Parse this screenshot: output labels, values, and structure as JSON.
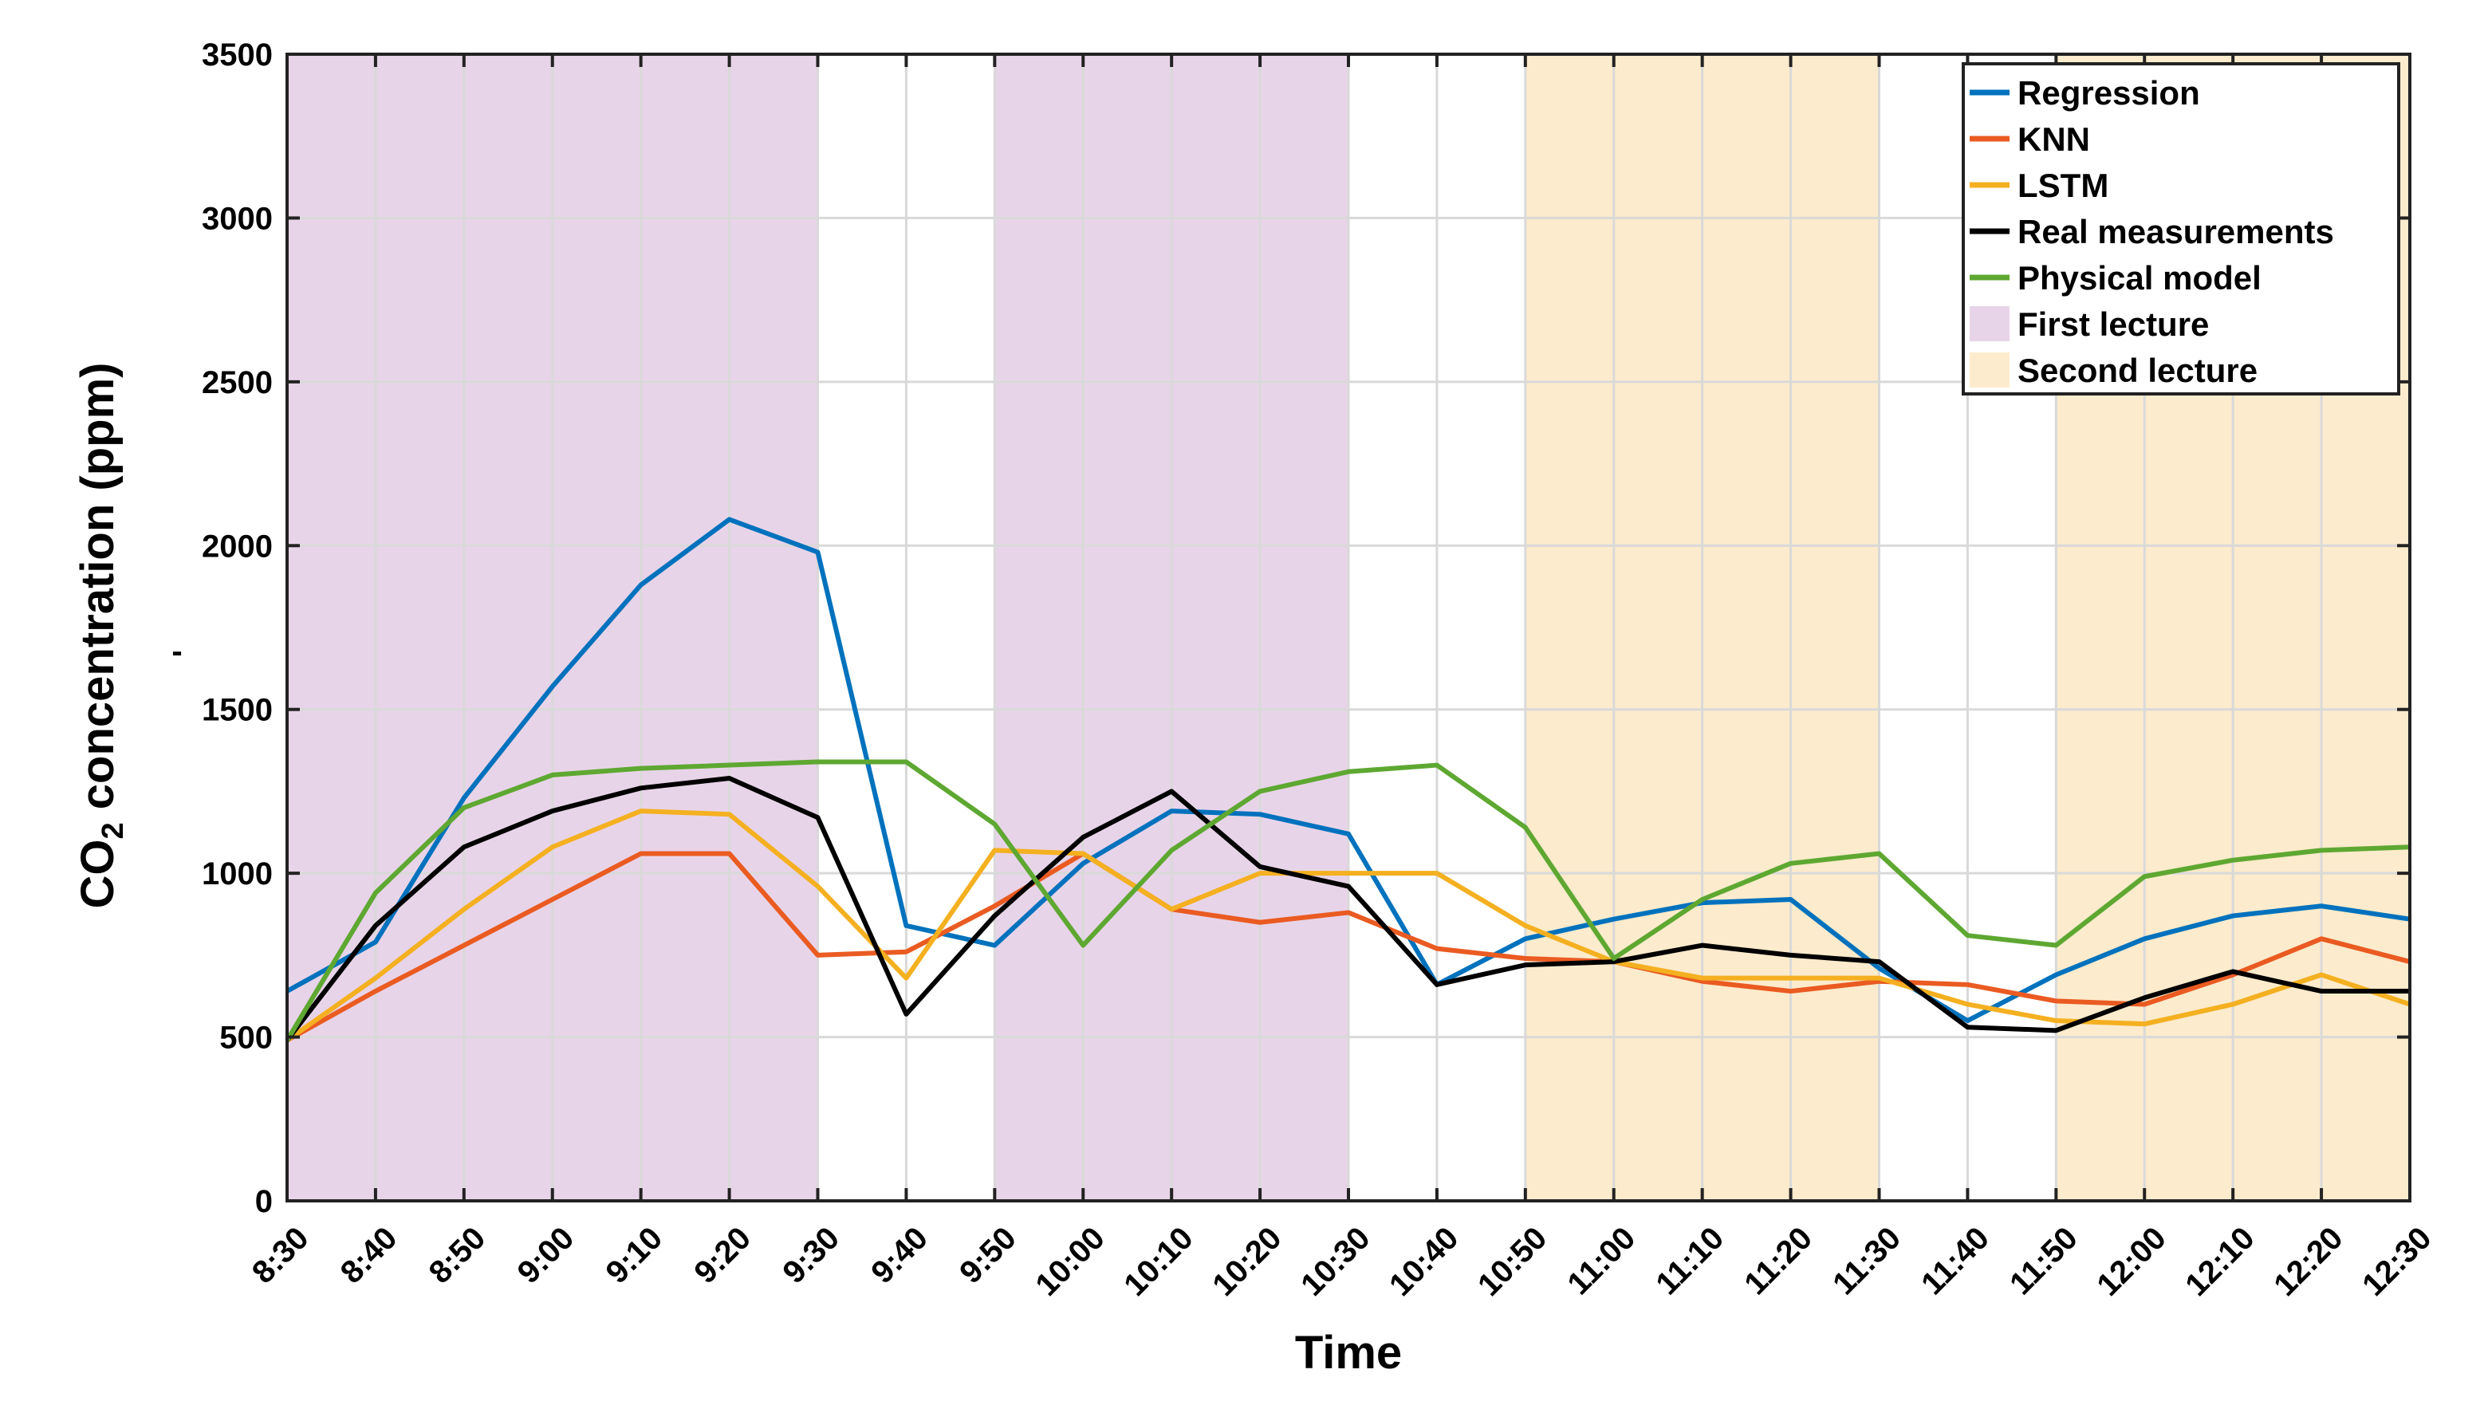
{
  "chart_data": {
    "type": "line",
    "title": "",
    "xlabel": "Time",
    "ylabel_main": "CO",
    "ylabel_sub": "2",
    "ylabel_rest": " concentration (ppm)",
    "ylabel_mark": "-",
    "categories": [
      "8:30",
      "8:40",
      "8:50",
      "9:00",
      "9:10",
      "9:20",
      "9:30",
      "9:40",
      "9:50",
      "10:00",
      "10:10",
      "10:20",
      "10:30",
      "10:40",
      "10:50",
      "11:00",
      "11:10",
      "11:20",
      "11:30",
      "11:40",
      "11:50",
      "12:00",
      "12:10",
      "12:20",
      "12:30"
    ],
    "ylim": [
      0,
      3500
    ],
    "yticks": [
      0,
      500,
      1000,
      1500,
      2000,
      2500,
      3000,
      3500
    ],
    "grid": true,
    "legend_position": "top-right",
    "series": [
      {
        "name": "Regression",
        "color": "#0072BD",
        "values": [
          640,
          790,
          1230,
          1570,
          1880,
          2080,
          1980,
          840,
          780,
          1030,
          1190,
          1180,
          1120,
          660,
          800,
          860,
          910,
          920,
          710,
          550,
          690,
          800,
          870,
          900,
          860
        ]
      },
      {
        "name": "KNN",
        "color": "#EA5B22",
        "values": [
          490,
          640,
          780,
          920,
          1060,
          1060,
          750,
          760,
          900,
          1060,
          890,
          850,
          880,
          770,
          740,
          730,
          670,
          640,
          670,
          660,
          610,
          600,
          690,
          800,
          730
        ]
      },
      {
        "name": "LSTM",
        "color": "#F4B020",
        "values": [
          490,
          680,
          890,
          1080,
          1190,
          1180,
          960,
          680,
          1070,
          1060,
          890,
          1000,
          1000,
          1000,
          840,
          730,
          680,
          680,
          680,
          600,
          550,
          540,
          600,
          690,
          600
        ]
      },
      {
        "name": "Real measurements",
        "color": "#000000",
        "values": [
          490,
          840,
          1080,
          1190,
          1260,
          1290,
          1170,
          570,
          870,
          1110,
          1250,
          1020,
          960,
          660,
          720,
          730,
          780,
          750,
          730,
          530,
          520,
          620,
          700,
          640,
          640
        ]
      },
      {
        "name": "Physical model",
        "color": "#5EA832",
        "values": [
          490,
          940,
          1200,
          1300,
          1320,
          1330,
          1340,
          1340,
          1150,
          780,
          1070,
          1250,
          1310,
          1330,
          1140,
          740,
          920,
          1030,
          1060,
          810,
          780,
          990,
          1040,
          1070,
          1080
        ]
      }
    ],
    "shaded_regions": [
      {
        "name": "First lecture",
        "color": "#E8D4E8",
        "from": "8:30",
        "to": "9:30"
      },
      {
        "name": "First lecture",
        "color": "#E8D4E8",
        "from": "9:50",
        "to": "10:30"
      },
      {
        "name": "Second lecture",
        "color": "#FCEBCC",
        "from": "10:50",
        "to": "11:30"
      },
      {
        "name": "Second lecture",
        "color": "#FCEBCC",
        "from": "11:50",
        "to": "12:30"
      }
    ],
    "legend_entries": [
      {
        "label": "Regression",
        "kind": "line",
        "color": "#0072BD"
      },
      {
        "label": "KNN",
        "kind": "line",
        "color": "#EA5B22"
      },
      {
        "label": "LSTM",
        "kind": "line",
        "color": "#F4B020"
      },
      {
        "label": "Real measurements",
        "kind": "line",
        "color": "#000000"
      },
      {
        "label": "Physical model",
        "kind": "line",
        "color": "#5EA832"
      },
      {
        "label": "First lecture",
        "kind": "patch",
        "color": "#E8D4E8"
      },
      {
        "label": "Second lecture",
        "kind": "patch",
        "color": "#FCEBCC"
      }
    ]
  }
}
